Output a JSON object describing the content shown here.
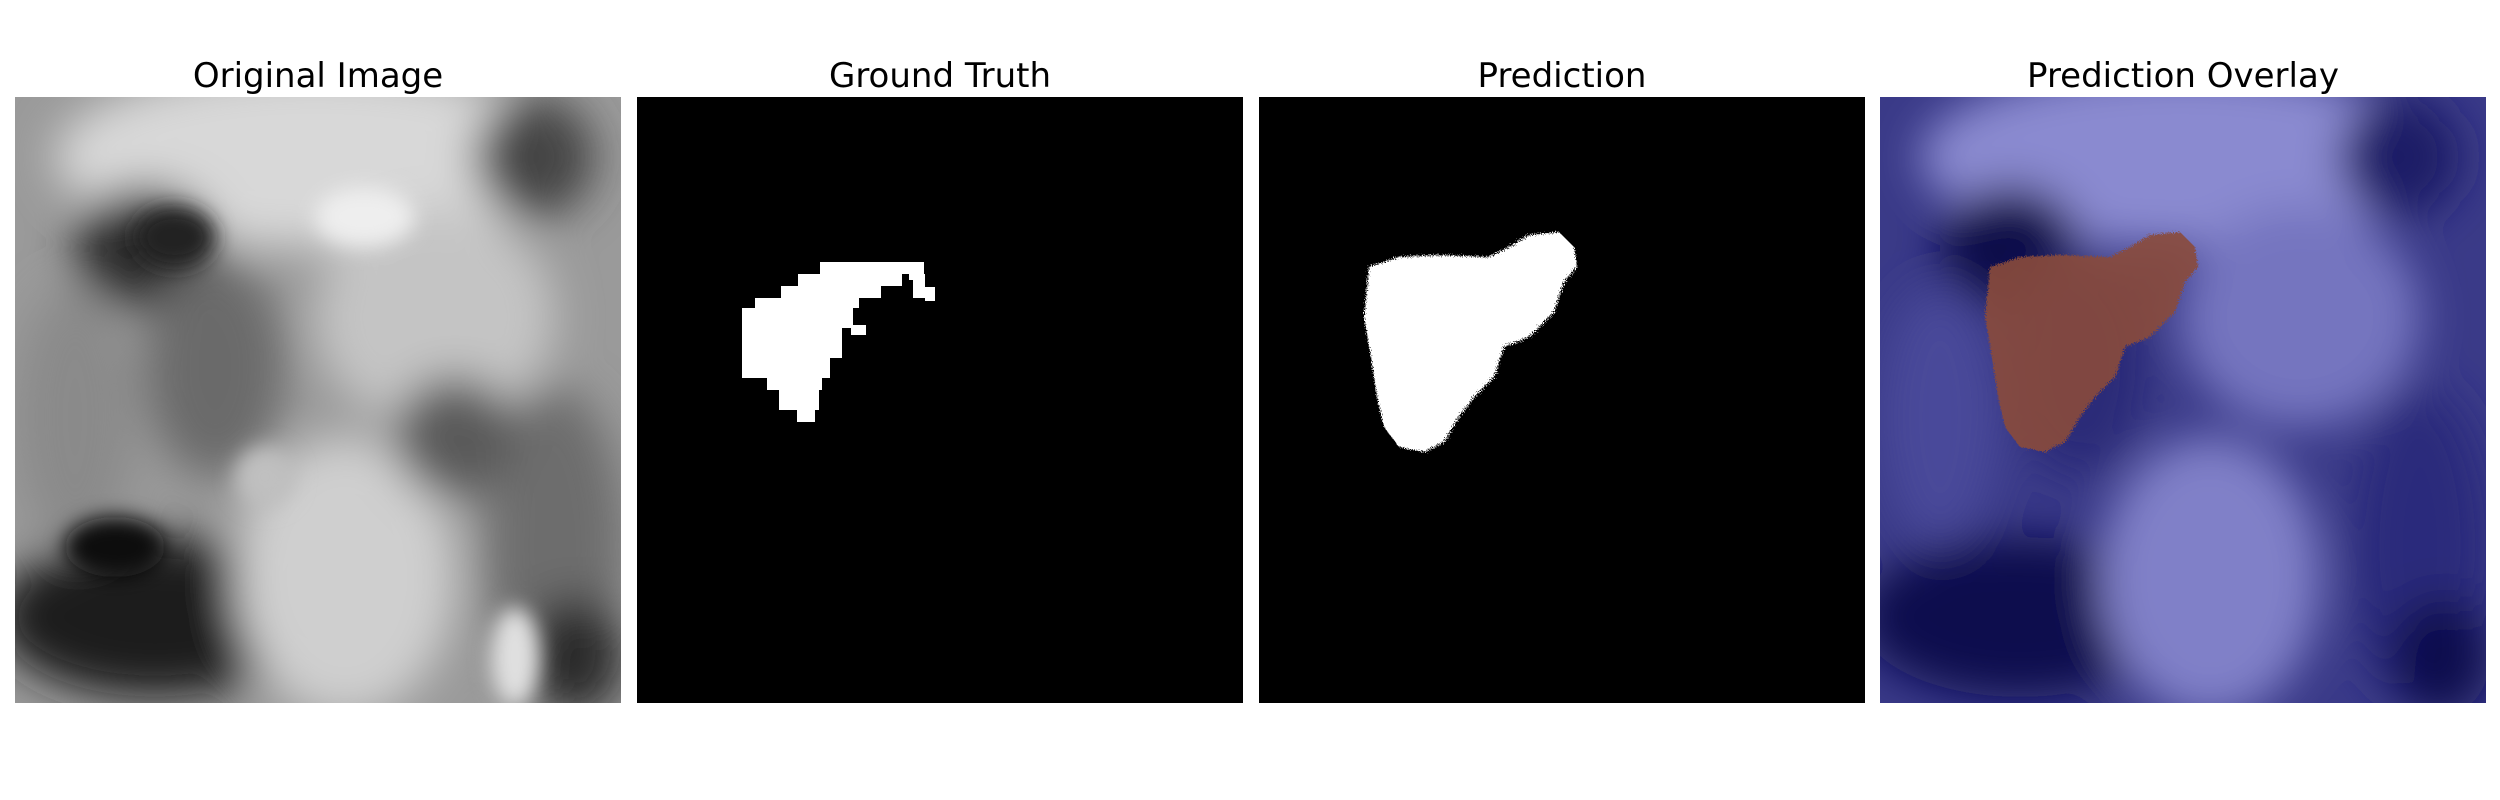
{
  "panels": [
    {
      "title": "Original Image"
    },
    {
      "title": "Ground Truth"
    },
    {
      "title": "Prediction"
    },
    {
      "title": "Prediction Overlay"
    }
  ],
  "colors": {
    "mask_foreground": "#ffffff",
    "mask_background": "#000000",
    "overlay_background": "#0b0b4e",
    "overlay_lesion": "#8a4a3c"
  }
}
